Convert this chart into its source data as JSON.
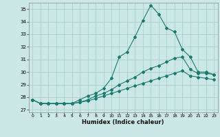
{
  "xlabel": "Humidex (Indice chaleur)",
  "ylabel": "",
  "bg_color": "#cce8e6",
  "grid_color": "#aacfcd",
  "line_color": "#1a7a6e",
  "xlim": [
    -0.5,
    23.5
  ],
  "ylim": [
    26.8,
    35.5
  ],
  "yticks": [
    27,
    28,
    29,
    30,
    31,
    32,
    33,
    34,
    35
  ],
  "xticks": [
    0,
    1,
    2,
    3,
    4,
    5,
    6,
    7,
    8,
    9,
    10,
    11,
    12,
    13,
    14,
    15,
    16,
    17,
    18,
    19,
    20,
    21,
    22,
    23
  ],
  "line1": [
    27.8,
    27.5,
    27.5,
    27.5,
    27.5,
    27.5,
    27.8,
    28.1,
    28.3,
    28.7,
    29.5,
    31.2,
    31.6,
    32.8,
    34.1,
    35.3,
    34.6,
    33.5,
    33.2,
    31.8,
    31.2,
    30.0,
    30.0,
    29.8
  ],
  "line2": [
    27.8,
    27.5,
    27.5,
    27.5,
    27.5,
    27.5,
    27.6,
    27.8,
    28.1,
    28.3,
    28.6,
    29.0,
    29.3,
    29.6,
    30.0,
    30.3,
    30.5,
    30.8,
    31.1,
    31.2,
    30.2,
    29.9,
    29.9,
    29.8
  ],
  "line3": [
    27.8,
    27.5,
    27.5,
    27.5,
    27.5,
    27.5,
    27.6,
    27.7,
    27.9,
    28.1,
    28.3,
    28.5,
    28.7,
    28.9,
    29.1,
    29.3,
    29.5,
    29.7,
    29.9,
    30.1,
    29.7,
    29.6,
    29.5,
    29.4
  ]
}
